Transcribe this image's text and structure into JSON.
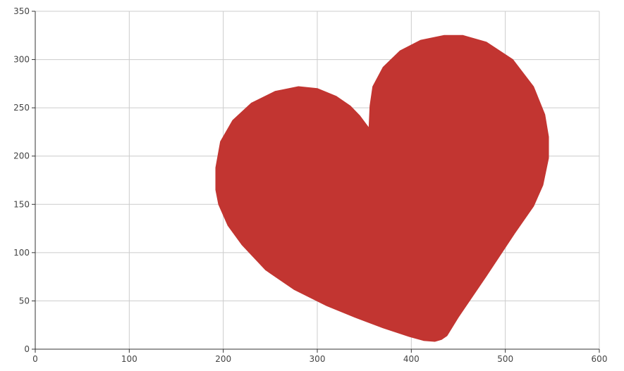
{
  "chart_data": {
    "type": "area",
    "title": "",
    "xlabel": "",
    "ylabel": "",
    "xlim": [
      0,
      600
    ],
    "ylim": [
      0,
      350
    ],
    "x_ticks": [
      0,
      100,
      200,
      300,
      400,
      500,
      600
    ],
    "y_ticks": [
      0,
      50,
      100,
      150,
      200,
      250,
      300,
      350
    ],
    "grid": true,
    "legend": "none",
    "fill_color": "#c23531",
    "series": [
      {
        "points": [
          [
            355,
            229
          ],
          [
            352,
            233
          ],
          [
            345,
            242
          ],
          [
            335,
            252
          ],
          [
            320,
            262
          ],
          [
            300,
            270
          ],
          [
            280,
            272
          ],
          [
            255,
            267
          ],
          [
            230,
            255
          ],
          [
            210,
            237
          ],
          [
            197,
            215
          ],
          [
            192,
            188
          ],
          [
            192,
            165
          ],
          [
            195,
            150
          ],
          [
            205,
            128
          ],
          [
            220,
            108
          ],
          [
            245,
            82
          ],
          [
            275,
            62
          ],
          [
            310,
            45
          ],
          [
            340,
            33
          ],
          [
            370,
            22
          ],
          [
            398,
            13
          ],
          [
            413,
            9
          ],
          [
            425,
            8
          ],
          [
            432,
            10
          ],
          [
            438,
            14
          ],
          [
            450,
            33
          ],
          [
            480,
            76
          ],
          [
            510,
            120
          ],
          [
            530,
            148
          ],
          [
            540,
            170
          ],
          [
            546,
            198
          ],
          [
            546,
            220
          ],
          [
            542,
            243
          ],
          [
            530,
            272
          ],
          [
            508,
            300
          ],
          [
            480,
            318
          ],
          [
            455,
            325
          ],
          [
            435,
            325
          ],
          [
            410,
            320
          ],
          [
            388,
            309
          ],
          [
            370,
            292
          ],
          [
            359,
            272
          ],
          [
            356,
            252
          ],
          [
            355,
            229
          ]
        ]
      }
    ]
  }
}
